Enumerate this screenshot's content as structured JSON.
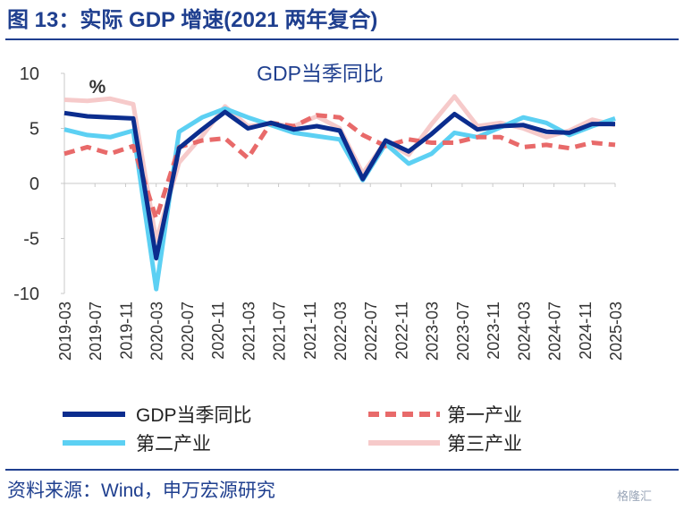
{
  "header": {
    "title": "图 13：实际 GDP 增速(2021 两年复合)"
  },
  "footer": {
    "source": "资料来源：Wind，申万宏源研究",
    "watermark": "格隆汇"
  },
  "colors": {
    "accent": "#1f3f8f"
  },
  "chart_data": {
    "type": "line",
    "title": "GDP当季同比",
    "unit_label": "%",
    "ylim": [
      -10,
      10
    ],
    "yticks": [
      10,
      5,
      0,
      -5,
      -10
    ],
    "x": [
      "2019-03",
      "2019-06",
      "2019-09",
      "2019-12",
      "2020-03",
      "2020-06",
      "2020-09",
      "2020-12",
      "2021-03",
      "2021-06",
      "2021-09",
      "2021-12",
      "2022-03",
      "2022-06",
      "2022-09",
      "2022-12",
      "2023-03",
      "2023-06",
      "2023-09",
      "2023-12",
      "2024-03",
      "2024-06",
      "2024-09",
      "2024-12",
      "2025-03"
    ],
    "xtick_labels": [
      "2019-03",
      "2019-07",
      "2019-11",
      "2020-03",
      "2020-07",
      "2020-11",
      "2021-03",
      "2021-07",
      "2021-11",
      "2022-03",
      "2022-07",
      "2022-11",
      "2023-03",
      "2023-07",
      "2023-11",
      "2024-03",
      "2024-07",
      "2024-11",
      "2025-03"
    ],
    "grid": false,
    "legend_position": "bottom",
    "series": [
      {
        "name": "GDP当季同比",
        "color": "#0b2d8e",
        "dash": "solid",
        "values": [
          6.4,
          6.1,
          6.0,
          5.9,
          -6.8,
          3.2,
          4.9,
          6.5,
          5.0,
          5.5,
          4.9,
          5.2,
          4.8,
          0.4,
          3.9,
          2.9,
          4.5,
          6.3,
          4.9,
          5.2,
          5.3,
          4.7,
          4.6,
          5.4,
          5.4
        ]
      },
      {
        "name": "第一产业",
        "color": "#e86a6a",
        "dash": "dashed",
        "values": [
          2.7,
          3.3,
          2.7,
          3.4,
          -3.2,
          3.3,
          3.9,
          4.1,
          2.3,
          5.5,
          5.2,
          6.2,
          6.0,
          4.4,
          3.4,
          4.0,
          3.7,
          3.7,
          4.2,
          4.2,
          3.3,
          3.5,
          3.2,
          3.7,
          3.5
        ]
      },
      {
        "name": "第二产业",
        "color": "#5cd0f3",
        "dash": "solid",
        "values": [
          4.9,
          4.4,
          4.2,
          4.8,
          -9.6,
          4.7,
          6.0,
          6.8,
          6.0,
          5.3,
          4.6,
          4.3,
          4.0,
          0.3,
          3.6,
          1.8,
          2.7,
          4.6,
          4.2,
          5.1,
          6.0,
          5.5,
          4.4,
          5.2,
          5.9
        ]
      },
      {
        "name": "第三产业",
        "color": "#f6caca",
        "dash": "solid",
        "values": [
          7.6,
          7.5,
          7.7,
          7.2,
          -5.2,
          1.9,
          4.3,
          7.0,
          5.2,
          5.4,
          5.2,
          6.1,
          5.0,
          0.9,
          3.8,
          2.6,
          5.4,
          7.9,
          5.2,
          5.5,
          5.0,
          4.2,
          4.8,
          5.8,
          5.3
        ]
      }
    ]
  }
}
